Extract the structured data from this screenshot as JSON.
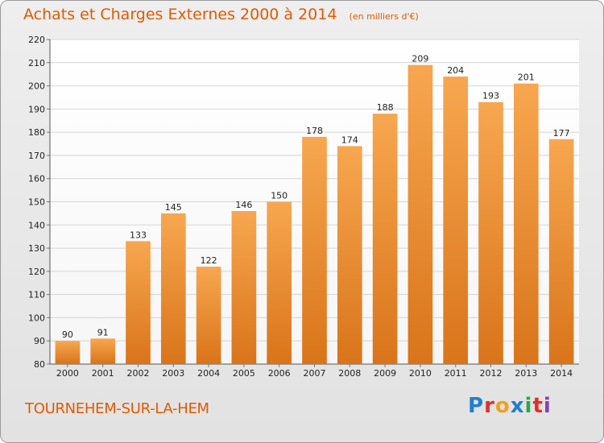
{
  "header": {
    "title": "Achats et Charges Externes 2000 à 2014",
    "subtitle": "(en milliers d'€)"
  },
  "footer": {
    "town": "TOURNEHEM-SUR-LA-HEM",
    "logo_text": "Proxiti",
    "logo_colors": [
      "#1f7fd0",
      "#e0302a",
      "#f0a020",
      "#1f7fd0",
      "#2aa84a",
      "#e0302a",
      "#8a3fb0"
    ]
  },
  "colors": {
    "bar_top": "#f7a750",
    "bar_bottom": "#d9741a",
    "title": "#e05a00"
  },
  "chart_data": {
    "type": "bar",
    "title": "Achats et Charges Externes 2000 à 2014",
    "subtitle": "(en milliers d'€)",
    "categories": [
      "2000",
      "2001",
      "2002",
      "2003",
      "2004",
      "2005",
      "2006",
      "2007",
      "2008",
      "2009",
      "2010",
      "2011",
      "2012",
      "2013",
      "2014"
    ],
    "values": [
      90,
      91,
      133,
      145,
      122,
      146,
      150,
      178,
      174,
      188,
      209,
      204,
      193,
      201,
      177
    ],
    "ylim": [
      80,
      220
    ],
    "yticks": [
      80,
      90,
      100,
      110,
      120,
      130,
      140,
      150,
      160,
      170,
      180,
      190,
      200,
      210,
      220
    ],
    "grid": true
  }
}
